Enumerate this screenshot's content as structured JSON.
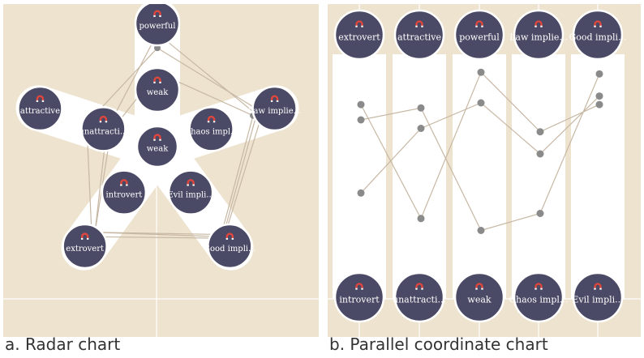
{
  "captions": {
    "radar": "a. Radar chart",
    "parallel": "b. Parallel coordinate chart"
  },
  "colors": {
    "panel_bg": "#ede3cf",
    "band": "#ffffff",
    "node_fill": "#4b4a66",
    "node_stroke": "#ffffff",
    "magnet": "#e0463c",
    "point": "#8a8a8a",
    "line": "#c7b8a4"
  },
  "icons": [
    "magnet-icon"
  ],
  "radar": {
    "axes": [
      {
        "positive": "powerful",
        "negative": "weak"
      },
      {
        "positive": "Law implie...",
        "negative": "Chaos impl..."
      },
      {
        "positive": "Good impli...",
        "negative": "Evil impli..."
      },
      {
        "positive": "extrovert",
        "negative": "introvert"
      },
      {
        "positive": "attractive",
        "negative": "unattracti..."
      }
    ],
    "items": [
      [
        0.82,
        0.95,
        0.98,
        0.96,
        0.55
      ],
      [
        0.55,
        0.84,
        0.93,
        0.9,
        0.27
      ],
      [
        0.98,
        0.88,
        0.96,
        0.9,
        0.32
      ]
    ]
  },
  "parallel": {
    "axes": [
      {
        "top": "extrovert",
        "bottom": "introvert"
      },
      {
        "top": "attractive",
        "bottom": "unattracti..."
      },
      {
        "top": "powerful",
        "bottom": "weak"
      },
      {
        "top": "Law implie...",
        "bottom": "Chaos impl..."
      },
      {
        "top": "Good impli...",
        "bottom": "Evil impli..."
      }
    ],
    "items": [
      [
        0.79,
        0.12,
        0.98,
        0.63,
        0.79
      ],
      [
        0.7,
        0.77,
        0.05,
        0.15,
        0.97
      ],
      [
        0.27,
        0.65,
        0.8,
        0.5,
        0.84
      ]
    ]
  }
}
